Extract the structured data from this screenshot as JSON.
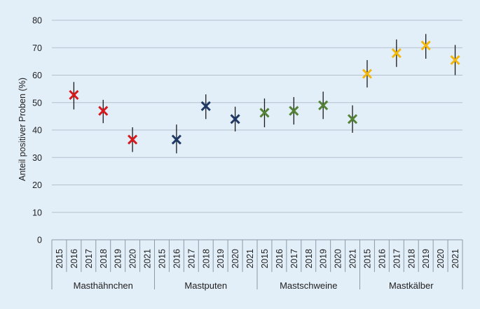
{
  "chart_data": {
    "type": "scatter",
    "ylabel": "Anteil positiver Proben (%)",
    "ylim": [
      0,
      80
    ],
    "yticks": [
      0,
      10,
      20,
      30,
      40,
      50,
      60,
      70,
      80
    ],
    "grid": true,
    "marker": "x",
    "groups": [
      {
        "name": "Masthähnchen",
        "color": "#d7191c",
        "years": [
          "2015",
          "2016",
          "2017",
          "2018",
          "2019",
          "2020",
          "2021"
        ],
        "points": [
          {
            "year": "2016",
            "value": 52.8,
            "low": 47.5,
            "high": 57.5
          },
          {
            "year": "2018",
            "value": 47.0,
            "low": 42.5,
            "high": 51.0
          },
          {
            "year": "2020",
            "value": 36.5,
            "low": 32.0,
            "high": 41.0
          }
        ]
      },
      {
        "name": "Mastputen",
        "color": "#1f3864",
        "years": [
          "2015",
          "2016",
          "2017",
          "2018",
          "2019",
          "2020",
          "2021"
        ],
        "points": [
          {
            "year": "2016",
            "value": 36.5,
            "low": 31.5,
            "high": 42.0
          },
          {
            "year": "2018",
            "value": 48.7,
            "low": 44.0,
            "high": 53.0
          },
          {
            "year": "2020",
            "value": 44.0,
            "low": 39.5,
            "high": 48.5
          }
        ]
      },
      {
        "name": "Mastschweine",
        "color": "#548235",
        "years": [
          "2015",
          "2016",
          "2017",
          "2018",
          "2019",
          "2020",
          "2021"
        ],
        "points": [
          {
            "year": "2015",
            "value": 46.3,
            "low": 41.0,
            "high": 51.5
          },
          {
            "year": "2017",
            "value": 47.0,
            "low": 42.0,
            "high": 52.0
          },
          {
            "year": "2019",
            "value": 49.0,
            "low": 44.0,
            "high": 54.0
          },
          {
            "year": "2021",
            "value": 44.0,
            "low": 39.0,
            "high": 49.0
          }
        ]
      },
      {
        "name": "Mastkälber",
        "color": "#f2b80f",
        "years": [
          "2015",
          "2016",
          "2017",
          "2018",
          "2019",
          "2020",
          "2021"
        ],
        "points": [
          {
            "year": "2015",
            "value": 60.5,
            "low": 55.5,
            "high": 65.5
          },
          {
            "year": "2017",
            "value": 68.0,
            "low": 63.0,
            "high": 73.0
          },
          {
            "year": "2019",
            "value": 70.8,
            "low": 66.0,
            "high": 75.0
          },
          {
            "year": "2021",
            "value": 65.5,
            "low": 60.0,
            "high": 71.0
          }
        ]
      }
    ]
  }
}
